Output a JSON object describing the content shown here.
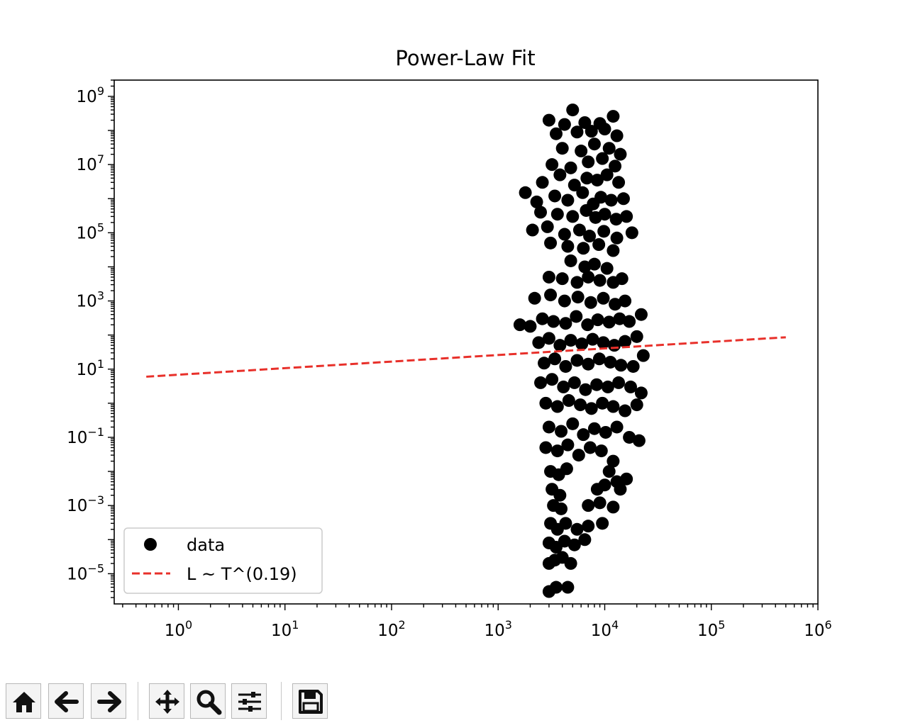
{
  "chart_data": {
    "type": "scatter",
    "title": "Power-Law Fit",
    "xlabel": "",
    "ylabel": "",
    "xscale": "log",
    "yscale": "log",
    "xlim": [
      0.25,
      1000000
    ],
    "ylim": [
      1.3e-06,
      3000000000
    ],
    "x_ticks": [
      {
        "value": 1,
        "label": "10",
        "exp": "0"
      },
      {
        "value": 10,
        "label": "10",
        "exp": "1"
      },
      {
        "value": 100,
        "label": "10",
        "exp": "2"
      },
      {
        "value": 1000,
        "label": "10",
        "exp": "3"
      },
      {
        "value": 10000,
        "label": "10",
        "exp": "4"
      },
      {
        "value": 100000,
        "label": "10",
        "exp": "5"
      },
      {
        "value": 1000000,
        "label": "10",
        "exp": "6"
      }
    ],
    "y_ticks": [
      {
        "value": 1e-05,
        "label": "10",
        "exp": "−5"
      },
      {
        "value": 0.001,
        "label": "10",
        "exp": "−3"
      },
      {
        "value": 0.1,
        "label": "10",
        "exp": "−1"
      },
      {
        "value": 10,
        "label": "10",
        "exp": "1"
      },
      {
        "value": 1000,
        "label": "10",
        "exp": "3"
      },
      {
        "value": 100000,
        "label": "10",
        "exp": "5"
      },
      {
        "value": 10000000,
        "label": "10",
        "exp": "7"
      },
      {
        "value": 1000000000,
        "label": "10",
        "exp": "9"
      }
    ],
    "grid": false,
    "legend_position": "lower-left",
    "series": [
      {
        "name": "data",
        "kind": "scatter",
        "color": "#000000",
        "points": [
          [
            5000,
            400000000
          ],
          [
            3000,
            200000000
          ],
          [
            4200,
            150000000
          ],
          [
            6500,
            170000000
          ],
          [
            9000,
            160000000
          ],
          [
            12000,
            260000000
          ],
          [
            3500,
            80000000
          ],
          [
            5500,
            90000000
          ],
          [
            7500,
            95000000
          ],
          [
            10000,
            110000000
          ],
          [
            13000,
            70000000
          ],
          [
            4000,
            30000000
          ],
          [
            6000,
            25000000
          ],
          [
            8000,
            40000000
          ],
          [
            11000,
            30000000
          ],
          [
            14000,
            20000000
          ],
          [
            3200,
            10000000
          ],
          [
            4800,
            8000000
          ],
          [
            7000,
            12000000
          ],
          [
            9500,
            15000000
          ],
          [
            12500,
            9000000
          ],
          [
            2600,
            3000000
          ],
          [
            3800,
            5000000
          ],
          [
            5200,
            2500000
          ],
          [
            6800,
            4000000
          ],
          [
            8500,
            3500000
          ],
          [
            10500,
            5000000
          ],
          [
            13500,
            3000000
          ],
          [
            1800,
            1500000
          ],
          [
            2300,
            800000
          ],
          [
            3400,
            1200000
          ],
          [
            4500,
            900000
          ],
          [
            6200,
            1500000
          ],
          [
            7800,
            700000
          ],
          [
            9200,
            1100000
          ],
          [
            11500,
            900000
          ],
          [
            15000,
            1000000
          ],
          [
            2500,
            400000
          ],
          [
            3600,
            350000
          ],
          [
            5000,
            300000
          ],
          [
            6700,
            450000
          ],
          [
            8200,
            280000
          ],
          [
            10000,
            350000
          ],
          [
            12800,
            250000
          ],
          [
            16000,
            300000
          ],
          [
            2100,
            120000
          ],
          [
            2900,
            150000
          ],
          [
            4200,
            90000
          ],
          [
            5800,
            120000
          ],
          [
            7200,
            80000
          ],
          [
            9800,
            110000
          ],
          [
            13000,
            70000
          ],
          [
            18000,
            100000
          ],
          [
            3100,
            50000
          ],
          [
            4500,
            40000
          ],
          [
            6300,
            35000
          ],
          [
            8800,
            45000
          ],
          [
            12000,
            30000
          ],
          [
            4800,
            15000
          ],
          [
            6500,
            10000
          ],
          [
            8000,
            12000
          ],
          [
            10500,
            9000
          ],
          [
            3000,
            5000
          ],
          [
            4000,
            4500
          ],
          [
            5500,
            3500
          ],
          [
            7000,
            5000
          ],
          [
            9000,
            4000
          ],
          [
            12000,
            3500
          ],
          [
            14500,
            4500
          ],
          [
            2200,
            1200
          ],
          [
            3100,
            1500
          ],
          [
            4200,
            1000
          ],
          [
            5600,
            1300
          ],
          [
            7400,
            900
          ],
          [
            9700,
            1200
          ],
          [
            12500,
            800
          ],
          [
            15500,
            1000
          ],
          [
            1600,
            200
          ],
          [
            2000,
            180
          ],
          [
            2600,
            300
          ],
          [
            3300,
            250
          ],
          [
            4300,
            220
          ],
          [
            5400,
            350
          ],
          [
            6900,
            200
          ],
          [
            8600,
            280
          ],
          [
            11000,
            240
          ],
          [
            13800,
            300
          ],
          [
            17000,
            250
          ],
          [
            22000,
            400
          ],
          [
            2400,
            60
          ],
          [
            3000,
            80
          ],
          [
            3800,
            50
          ],
          [
            4800,
            70
          ],
          [
            6100,
            55
          ],
          [
            7700,
            75
          ],
          [
            9700,
            60
          ],
          [
            12300,
            50
          ],
          [
            15500,
            65
          ],
          [
            20000,
            90
          ],
          [
            2700,
            15
          ],
          [
            3400,
            20
          ],
          [
            4300,
            12
          ],
          [
            5500,
            18
          ],
          [
            7000,
            14
          ],
          [
            8900,
            20
          ],
          [
            11300,
            16
          ],
          [
            14200,
            13
          ],
          [
            18500,
            12
          ],
          [
            23000,
            25
          ],
          [
            2500,
            4
          ],
          [
            3200,
            5
          ],
          [
            4100,
            3
          ],
          [
            5200,
            4
          ],
          [
            6600,
            2.5
          ],
          [
            8400,
            3.5
          ],
          [
            10700,
            3
          ],
          [
            13500,
            4
          ],
          [
            17500,
            3
          ],
          [
            22000,
            2
          ],
          [
            2800,
            1
          ],
          [
            3600,
            0.8
          ],
          [
            4600,
            1.2
          ],
          [
            5900,
            0.9
          ],
          [
            7500,
            0.7
          ],
          [
            9500,
            1
          ],
          [
            12000,
            0.8
          ],
          [
            15500,
            0.6
          ],
          [
            20000,
            0.9
          ],
          [
            3000,
            0.2
          ],
          [
            3900,
            0.15
          ],
          [
            5000,
            0.25
          ],
          [
            6300,
            0.12
          ],
          [
            8000,
            0.18
          ],
          [
            10200,
            0.14
          ],
          [
            13000,
            0.2
          ],
          [
            17000,
            0.1
          ],
          [
            21000,
            0.08
          ],
          [
            2800,
            0.05
          ],
          [
            3600,
            0.04
          ],
          [
            4500,
            0.06
          ],
          [
            5700,
            0.03
          ],
          [
            7300,
            0.05
          ],
          [
            9300,
            0.04
          ],
          [
            12000,
            0.02
          ],
          [
            3100,
            0.01
          ],
          [
            3700,
            0.008
          ],
          [
            4400,
            0.012
          ],
          [
            11000,
            0.01
          ],
          [
            13000,
            0.005
          ],
          [
            16000,
            0.006
          ],
          [
            3200,
            0.003
          ],
          [
            3800,
            0.002
          ],
          [
            8500,
            0.003
          ],
          [
            10000,
            0.004
          ],
          [
            14000,
            0.003
          ],
          [
            3300,
            0.001
          ],
          [
            3900,
            0.0008
          ],
          [
            7000,
            0.001
          ],
          [
            9000,
            0.0012
          ],
          [
            12000,
            0.0009
          ],
          [
            3100,
            0.0003
          ],
          [
            3600,
            0.0002
          ],
          [
            4300,
            0.0003
          ],
          [
            5500,
            0.0002
          ],
          [
            7000,
            0.00025
          ],
          [
            9500,
            0.0003
          ],
          [
            3000,
            8e-05
          ],
          [
            3500,
            6e-05
          ],
          [
            4200,
            9e-05
          ],
          [
            5200,
            7e-05
          ],
          [
            6500,
            0.0001
          ],
          [
            3000,
            2e-05
          ],
          [
            3400,
            2.5e-05
          ],
          [
            4000,
            3e-05
          ],
          [
            4800,
            2e-05
          ],
          [
            3000,
            3e-06
          ],
          [
            3500,
            4e-06
          ],
          [
            4500,
            4e-06
          ]
        ]
      },
      {
        "name": "L ~ T^(0.19)",
        "kind": "line",
        "style": "dashed",
        "color": "#e8302a",
        "points": [
          [
            0.5,
            6.0
          ],
          [
            500000,
            86.0
          ]
        ]
      }
    ]
  },
  "toolbar": {
    "buttons": [
      {
        "name": "home-button",
        "icon": "home-icon"
      },
      {
        "name": "back-button",
        "icon": "arrow-left-icon"
      },
      {
        "name": "forward-button",
        "icon": "arrow-right-icon"
      },
      {
        "name": "pan-button",
        "icon": "move-icon"
      },
      {
        "name": "zoom-button",
        "icon": "magnifier-icon"
      },
      {
        "name": "configure-subplots-button",
        "icon": "sliders-icon"
      },
      {
        "name": "save-button",
        "icon": "floppy-disk-icon"
      }
    ]
  }
}
